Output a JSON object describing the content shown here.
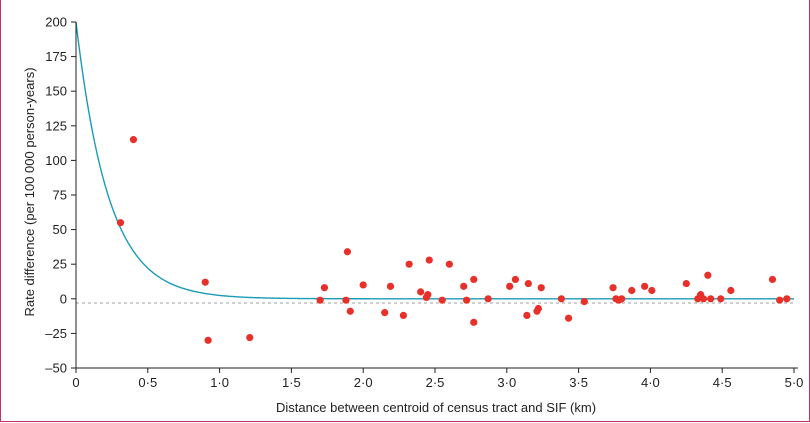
{
  "chart_data": {
    "type": "scatter",
    "xlabel": "Distance between centroid of census tract and SIF (km)",
    "ylabel": "Rate difference (per 100 000 person-years)",
    "xlim": [
      0,
      5.0
    ],
    "ylim": [
      -50,
      200
    ],
    "x_ticks": [
      "0",
      "0·5",
      "1·0",
      "1·5",
      "2·0",
      "2·5",
      "3·0",
      "3·5",
      "4·0",
      "4·5",
      "5·0"
    ],
    "x_tick_values": [
      0,
      0.5,
      1.0,
      1.5,
      2.0,
      2.5,
      3.0,
      3.5,
      4.0,
      4.5,
      5.0
    ],
    "y_ticks": [
      "200",
      "175",
      "150",
      "125",
      "100",
      "75",
      "50",
      "25",
      "0",
      "–25",
      "–50"
    ],
    "y_tick_values": [
      200,
      175,
      150,
      125,
      100,
      75,
      50,
      25,
      0,
      -25,
      -50
    ],
    "grid": false,
    "colors": {
      "points": "#e8302a",
      "fit_line": "#1a9bb5",
      "reference_line": "#9aa0a6"
    },
    "fit_curve": {
      "form": "exponential_decay",
      "y0": 200,
      "decay_per_km": 4.4
    },
    "reference_line_y": -3,
    "points": [
      {
        "x": 0.31,
        "y": 55
      },
      {
        "x": 0.4,
        "y": 115
      },
      {
        "x": 0.9,
        "y": 12
      },
      {
        "x": 0.92,
        "y": -30
      },
      {
        "x": 1.21,
        "y": -28
      },
      {
        "x": 1.7,
        "y": -1
      },
      {
        "x": 1.73,
        "y": 8
      },
      {
        "x": 1.88,
        "y": -1
      },
      {
        "x": 1.89,
        "y": 34
      },
      {
        "x": 1.91,
        "y": -9
      },
      {
        "x": 2.0,
        "y": 10
      },
      {
        "x": 2.15,
        "y": -10
      },
      {
        "x": 2.19,
        "y": 9
      },
      {
        "x": 2.28,
        "y": -12
      },
      {
        "x": 2.32,
        "y": 25
      },
      {
        "x": 2.4,
        "y": 5
      },
      {
        "x": 2.44,
        "y": 1
      },
      {
        "x": 2.45,
        "y": 3
      },
      {
        "x": 2.46,
        "y": 28
      },
      {
        "x": 2.55,
        "y": -1
      },
      {
        "x": 2.6,
        "y": 25
      },
      {
        "x": 2.7,
        "y": 9
      },
      {
        "x": 2.72,
        "y": -1
      },
      {
        "x": 2.77,
        "y": 14
      },
      {
        "x": 2.77,
        "y": -17
      },
      {
        "x": 2.87,
        "y": 0
      },
      {
        "x": 3.02,
        "y": 9
      },
      {
        "x": 3.06,
        "y": 14
      },
      {
        "x": 3.14,
        "y": -12
      },
      {
        "x": 3.15,
        "y": 11
      },
      {
        "x": 3.21,
        "y": -9
      },
      {
        "x": 3.22,
        "y": -7
      },
      {
        "x": 3.24,
        "y": 8
      },
      {
        "x": 3.38,
        "y": 0
      },
      {
        "x": 3.43,
        "y": -14
      },
      {
        "x": 3.54,
        "y": -2
      },
      {
        "x": 3.74,
        "y": 8
      },
      {
        "x": 3.76,
        "y": 0
      },
      {
        "x": 3.78,
        "y": -1
      },
      {
        "x": 3.8,
        "y": 0
      },
      {
        "x": 3.87,
        "y": 6
      },
      {
        "x": 3.96,
        "y": 9
      },
      {
        "x": 4.01,
        "y": 6
      },
      {
        "x": 4.25,
        "y": 11
      },
      {
        "x": 4.33,
        "y": 0
      },
      {
        "x": 4.35,
        "y": 3
      },
      {
        "x": 4.37,
        "y": 0
      },
      {
        "x": 4.4,
        "y": 17
      },
      {
        "x": 4.42,
        "y": 0
      },
      {
        "x": 4.49,
        "y": 0
      },
      {
        "x": 4.56,
        "y": 6
      },
      {
        "x": 4.85,
        "y": 14
      },
      {
        "x": 4.9,
        "y": -1
      },
      {
        "x": 4.95,
        "y": 0
      }
    ]
  }
}
